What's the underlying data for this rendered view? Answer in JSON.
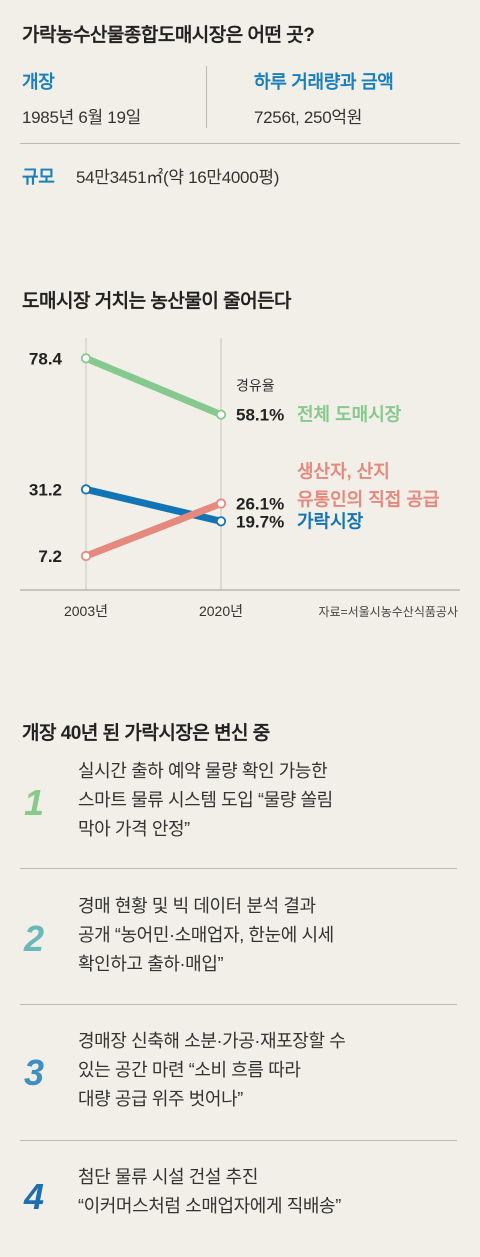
{
  "info": {
    "title": "가락농수산물종합도매시장은 어떤 곳?",
    "opened_label": "개장",
    "opened_value": "1985년 6월 19일",
    "daily_label": "하루 거래량과 금액",
    "daily_value": "7256t, 250억원",
    "size_label": "규모",
    "size_value": "54만3451㎡(약 16만4000평)"
  },
  "chart_title": "도매시장 거치는 농산물이 줄어든다",
  "chart_data": {
    "type": "line",
    "title": "도매시장 거치는 농산물이 줄어든다",
    "x": [
      "2003년",
      "2020년"
    ],
    "ylim": [
      0,
      85
    ],
    "grid": false,
    "legend_header": "경유율",
    "series": [
      {
        "name": "전체 도매시장",
        "values": [
          78.4,
          58.1
        ],
        "color": "#86c98e",
        "start_label": "78.4",
        "end_label": "58.1%"
      },
      {
        "name": "가락시장",
        "values": [
          31.2,
          19.7
        ],
        "color": "#1273b5",
        "start_label": "31.2",
        "end_label": "19.7%"
      },
      {
        "name": "생산자, 산지 유통인의 직접 공급",
        "name_lines": [
          "생산자, 산지",
          "유통인의 직접 공급"
        ],
        "values": [
          7.2,
          26.1
        ],
        "color": "#e5897f",
        "start_label": "7.2",
        "end_label": "26.1%"
      }
    ],
    "source": "자료=서울시농수산식품공사"
  },
  "changes": {
    "title": "개장 40년 된 가락시장은 변신 중",
    "items": [
      {
        "num": "1",
        "color": "#88c98c",
        "lines": [
          "실시간 출하 예약 물량 확인 가능한",
          "스마트 물류 시스템 도입 “물량 쏠림",
          "막아 가격 안정”"
        ]
      },
      {
        "num": "2",
        "color": "#6bb8b8",
        "lines": [
          "경매 현황 및 빅 데이터 분석 결과",
          "공개 “농어민·소매업자, 한눈에 시세",
          "확인하고 출하·매입”"
        ]
      },
      {
        "num": "3",
        "color": "#3e8fc4",
        "lines": [
          "경매장 신축해 소분·가공·재포장할 수",
          "있는 공간 마련 “소비 흐름 따라",
          "대량 공급 위주 벗어나”"
        ]
      },
      {
        "num": "4",
        "color": "#1f6fb0",
        "lines": [
          "첨단 물류 시설 건설 추진",
          "“이커머스처럼 소매업자에게 직배송”"
        ]
      }
    ]
  }
}
